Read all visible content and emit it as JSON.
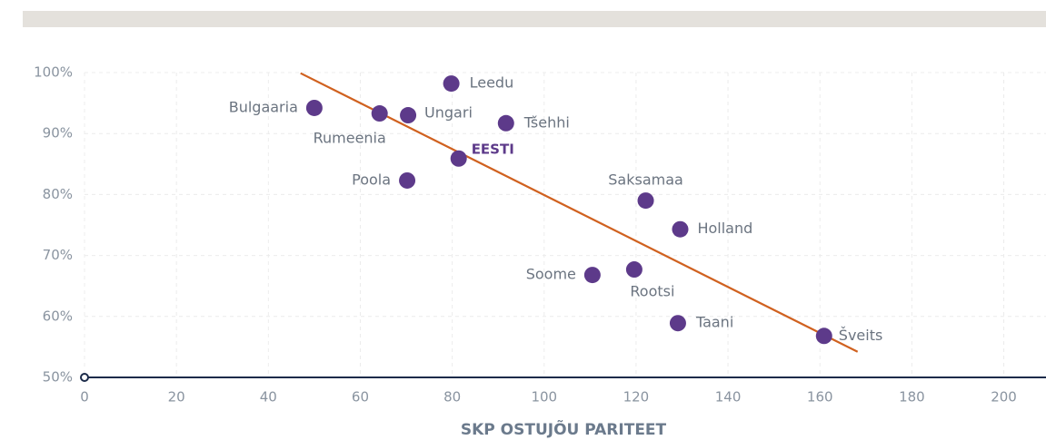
{
  "chart_data": {
    "type": "scatter",
    "x_label": "SKP OSTUJÕU PARITEET",
    "labels": [
      "Bulgaaria",
      "Rumeenia",
      "Ungari",
      "Leedu",
      "Tšehhi",
      "EESTI",
      "Poola",
      "Saksamaa",
      "Holland",
      "Soome",
      "Rootsi",
      "Taani",
      "Šveits"
    ],
    "x": [
      50,
      64.2,
      70.4,
      79.8,
      91.7,
      81.4,
      70.2,
      122.1,
      129.6,
      110.5,
      119.6,
      129.1,
      160.9
    ],
    "values": [
      94.2,
      93.3,
      93.0,
      98.2,
      91.7,
      85.9,
      82.3,
      79.0,
      74.3,
      66.8,
      67.7,
      58.9,
      56.8
    ],
    "color": "#5d3a8a",
    "trend": {
      "color": "#d0611f",
      "x": [
        47,
        168.2
      ],
      "values": [
        99.9,
        54.2
      ]
    },
    "xlim": [
      0,
      208
    ],
    "ylim": [
      50,
      100
    ],
    "xticks": [
      0,
      20,
      40,
      60,
      80,
      100,
      120,
      140,
      160,
      180,
      200
    ],
    "yticks": [
      {
        "value": 50,
        "label": "50%"
      },
      {
        "value": 60,
        "label": "60%"
      },
      {
        "value": 70,
        "label": "70%"
      },
      {
        "value": 80,
        "label": "80%"
      },
      {
        "value": 90,
        "label": "90%"
      },
      {
        "value": 100,
        "label": "100%"
      }
    ],
    "grid": true
  }
}
